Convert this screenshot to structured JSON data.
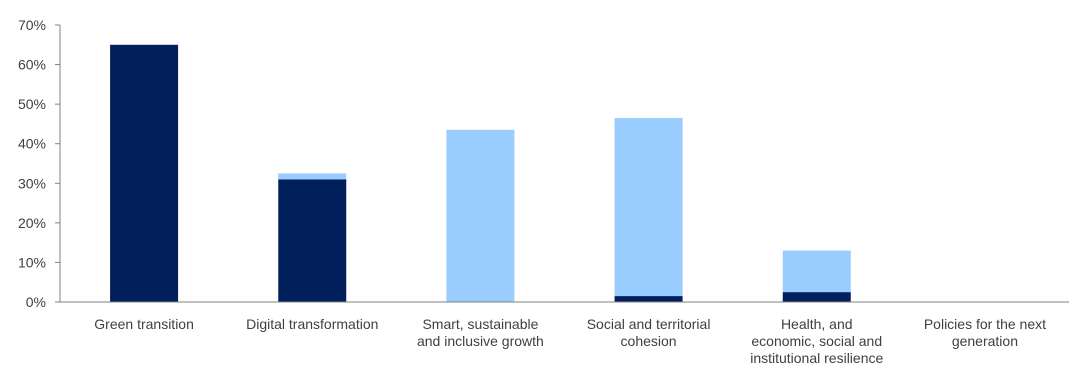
{
  "chart_data": {
    "type": "bar",
    "stacked": true,
    "categories": [
      [
        "Green transition"
      ],
      [
        "Digital transformation"
      ],
      [
        "Smart, sustainable",
        "and inclusive growth"
      ],
      [
        "Social and territorial",
        "cohesion"
      ],
      [
        "Health, and",
        "economic, social and",
        "institutional resilience"
      ],
      [
        "Policies for the next",
        "generation"
      ]
    ],
    "series": [
      {
        "values": [
          65,
          31,
          0,
          1.5,
          2.5,
          0
        ]
      },
      {
        "values": [
          0,
          1.5,
          43.5,
          45,
          10.5,
          0
        ]
      }
    ],
    "colors": [
      "#001f5b",
      "#99ccff"
    ],
    "ylim": [
      0,
      70
    ],
    "yticks": [
      0,
      10,
      20,
      30,
      40,
      50,
      60,
      70
    ],
    "ytick_format": "percent",
    "legend": "none",
    "grid": false
  }
}
